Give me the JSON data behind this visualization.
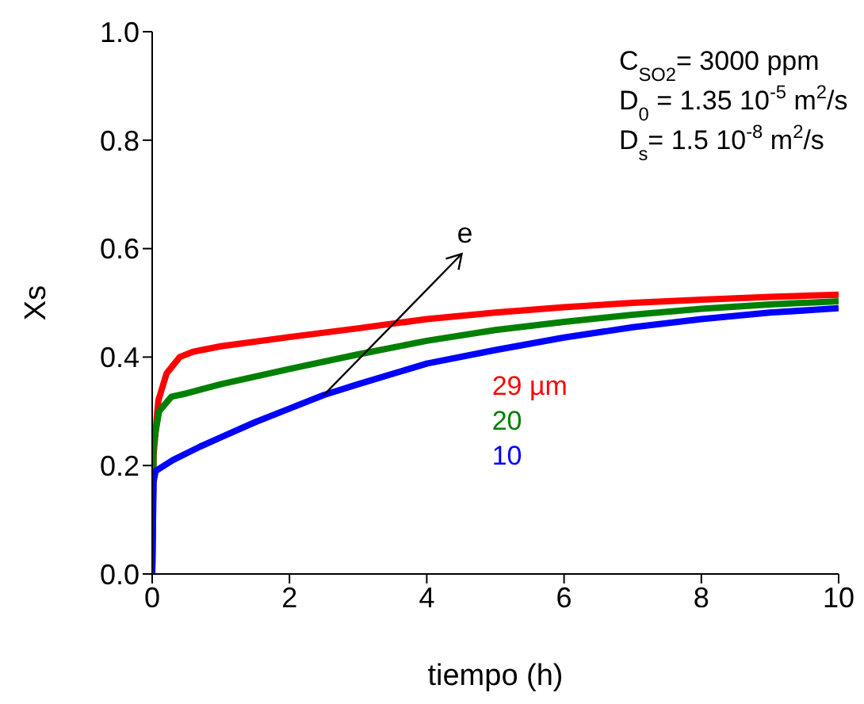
{
  "chart_data": {
    "type": "line",
    "xlabel": "tiempo (h)",
    "ylabel": "Xs",
    "xlim": [
      0,
      10
    ],
    "xticks": [
      0,
      2,
      4,
      6,
      8,
      10
    ],
    "ylim": [
      0,
      1
    ],
    "yticks": [
      {
        "value": 0,
        "label": "0.0"
      },
      {
        "value": 0.2,
        "label": "0.2"
      },
      {
        "value": 0.4,
        "label": "0.4"
      },
      {
        "value": 0.6,
        "label": "0.6"
      },
      {
        "value": 0.8,
        "label": "0.8"
      },
      {
        "value": 1,
        "label": "1.0"
      }
    ],
    "grid": false,
    "legend": false,
    "marker": "none",
    "line_style": "solid",
    "annotations": [
      "C$_{SO2}$= 3000 ppm",
      "D$_{0}$ = 1.35 10$^{-5}$ m$^{2}$/s",
      "D$_{s}$= 1.5 10$^{-8}$ m$^{2}$/s",
      {
        "text": "e",
        "x": 2.5,
        "y": 0.33
      }
    ],
    "series": [
      {
        "name": "29 µm",
        "color": "#ff0000",
        "x": [
          0,
          0.02,
          0.09,
          0.21,
          0.4,
          0.6,
          1,
          2,
          3,
          4,
          5,
          6,
          7,
          8,
          9,
          10
        ],
        "values": [
          0,
          0.22,
          0.32,
          0.37,
          0.4,
          0.41,
          0.42,
          0.437,
          0.453,
          0.47,
          0.482,
          0.492,
          0.5,
          0.506,
          0.511,
          0.515
        ]
      },
      {
        "name": "20",
        "color": "#008000",
        "x": [
          0,
          0.02,
          0.1,
          0.28,
          0.5,
          1,
          2,
          3,
          4,
          5,
          6,
          7,
          8,
          9,
          10
        ],
        "values": [
          0,
          0.24,
          0.3,
          0.327,
          0.333,
          0.35,
          0.378,
          0.405,
          0.43,
          0.45,
          0.465,
          0.478,
          0.489,
          0.497,
          0.503
        ]
      },
      {
        "name": "10",
        "color": "#0000ff",
        "x": [
          0,
          0.02,
          0.05,
          0.3,
          0.7,
          1,
          1.5,
          2,
          2.5,
          3,
          4,
          5,
          6,
          7,
          8,
          9,
          10
        ],
        "values": [
          0,
          0.17,
          0.19,
          0.21,
          0.235,
          0.252,
          0.28,
          0.305,
          0.33,
          0.35,
          0.388,
          0.413,
          0.436,
          0.455,
          0.47,
          0.482,
          0.49
        ]
      }
    ]
  }
}
